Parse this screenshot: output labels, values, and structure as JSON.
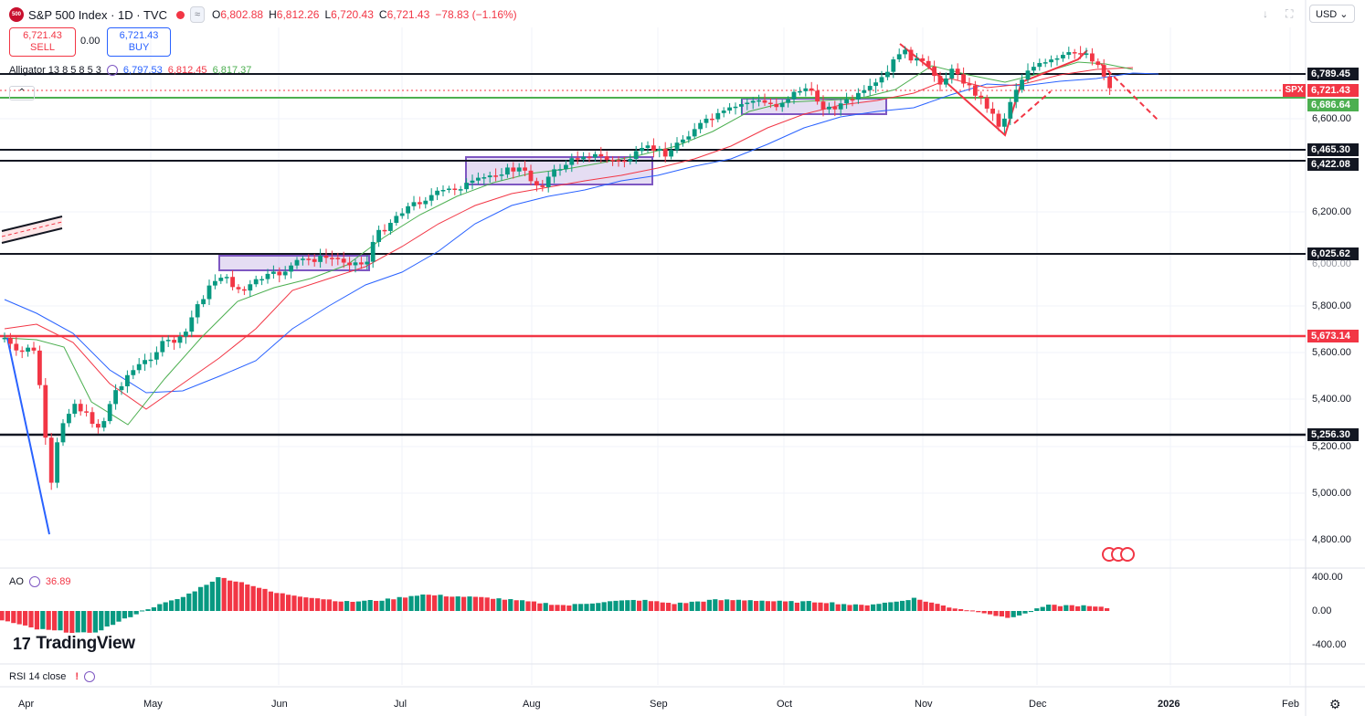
{
  "header": {
    "logo_text": "500",
    "symbol": "S&P 500 Index · 1D · TVC",
    "open_label": "O",
    "open": "6,802.88",
    "high_label": "H",
    "high": "6,812.26",
    "low_label": "L",
    "low": "6,720.43",
    "close_label": "C",
    "close": "6,721.43",
    "change": "−78.83 (−1.16%)",
    "pill_symbol": "≈"
  },
  "trade": {
    "sell_price": "6,721.43",
    "sell_label": "SELL",
    "spread": "0.00",
    "buy_price": "6,721.43",
    "buy_label": "BUY"
  },
  "indicators": {
    "alligator_name": "Alligator 13 8 5 8 5 3",
    "alligator_jaw": "6,797.53",
    "alligator_teeth": "6,812.45",
    "alligator_lips": "6,817.37",
    "ao_name": "AO",
    "ao_value": "36.89",
    "rsi_name": "RSI 14 close",
    "rsi_warning": "!"
  },
  "toolbar": {
    "collapse": "⌃",
    "currency": "USD",
    "currency_caret": "⌄",
    "download_icon": "↓",
    "fullscreen_icon": "⛶"
  },
  "price_axis": [
    "6,600.00",
    "6,200.00",
    "5,800.00",
    "5,600.00",
    "5,400.00",
    "5,200.00",
    "5,000.00",
    "4,800.00"
  ],
  "price_axis_partial": "6,000.00",
  "levels": {
    "l6789": "6,789.45",
    "spx": "SPX",
    "last": "6,721.43",
    "l6686": "6,686.64",
    "l6465": "6,465.30",
    "l6422": "6,422.08",
    "l6025": "6,025.62",
    "l5673": "5,673.14",
    "l5256": "5,256.30"
  },
  "ao_axis": [
    "400.00",
    "0.00",
    "-400.00"
  ],
  "time_axis": [
    "Apr",
    "May",
    "Jun",
    "Jul",
    "Aug",
    "Sep",
    "Oct",
    "Nov",
    "Dec",
    "2026",
    "Feb"
  ],
  "branding": {
    "logo": "TradingView",
    "mark": "17"
  },
  "colors": {
    "up": "#089981",
    "down": "#f23645",
    "jaw": "#2962ff",
    "teeth": "#f23645",
    "lips": "#4caf50",
    "zone": "#7e57c2"
  }
}
